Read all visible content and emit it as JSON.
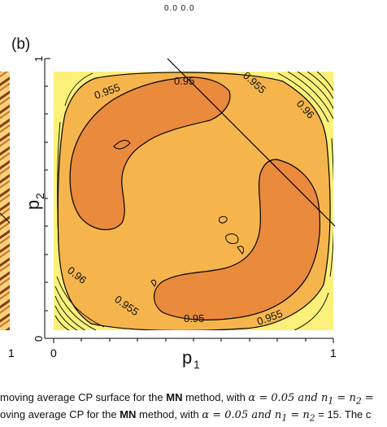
{
  "figure": {
    "top_ticks": "0.0  0.0",
    "panel_label": "(b)",
    "x_axis_label": "p",
    "x_axis_sub": "1",
    "y_axis_label": "p",
    "y_axis_sub": "2",
    "left_partial_tick": "1",
    "x_tick_0": "0",
    "x_tick_1": "1",
    "y_tick_0": "0",
    "y_tick_1": "1",
    "contour_labels": [
      "0.955",
      "0.95",
      "0.955",
      "0.96",
      "0.96",
      "0.955",
      "0.95",
      "0.955"
    ],
    "colors": {
      "outer": "#fbf07a",
      "mid": "#f5b54c",
      "inner": "#ea8a3c",
      "contour": "#000000"
    }
  },
  "chart_data": {
    "type": "heatmap",
    "title": "",
    "xlabel": "p1",
    "ylabel": "p2",
    "xlim": [
      0,
      1
    ],
    "ylim": [
      0,
      1
    ],
    "contour_levels": [
      0.95,
      0.955,
      0.96
    ]
  },
  "caption": {
    "line1_a": "moving average CP surface for the ",
    "line1_b": "MN",
    "line1_c": " method, with ",
    "line1_d": "α = 0.05 and n",
    "line1_e": "1",
    "line1_f": " = n",
    "line1_g": "2",
    "line1_h": " =",
    "line2_a": "oving average CP for the ",
    "line2_b": "MN",
    "line2_c": " method, with ",
    "line2_d": "α = 0.05 and n",
    "line2_e": "1",
    "line2_f": " = n",
    "line2_g": "2",
    "line2_h": " = 15. The c"
  }
}
